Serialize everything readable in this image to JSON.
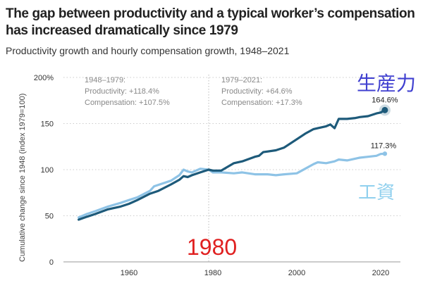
{
  "chart_data": {
    "type": "line",
    "title": "The gap between productivity and a typical worker’s compensation has increased dramatically since 1979",
    "subtitle": "Productivity growth and hourly compensation growth, 1948–2021",
    "xlabel": "",
    "ylabel": "Cumulative change since 1948 (index 1979=100)",
    "xlim": [
      1945,
      2024
    ],
    "ylim": [
      0,
      200
    ],
    "x_ticks": [
      1960,
      1980,
      2000,
      2020
    ],
    "x_tick_labels": [
      "1960",
      "1980",
      "2000",
      "2020"
    ],
    "y_ticks": [
      0,
      50,
      100,
      150,
      200
    ],
    "y_tick_labels": [
      "0",
      "50",
      "100",
      "150",
      "200%"
    ],
    "grid": true,
    "reference_line_x": 1979,
    "series": [
      {
        "name": "Productivity",
        "color": "#1d5a7a",
        "x": [
          1948,
          1950,
          1952,
          1955,
          1958,
          1960,
          1962,
          1965,
          1967,
          1970,
          1972,
          1973,
          1974,
          1975,
          1977,
          1979,
          1980,
          1982,
          1985,
          1987,
          1990,
          1991,
          1992,
          1995,
          1997,
          2000,
          2002,
          2004,
          2005,
          2007,
          2008,
          2009,
          2010,
          2012,
          2014,
          2015,
          2017,
          2019,
          2020,
          2021
        ],
        "values": [
          45.8,
          49,
          52,
          57,
          60,
          63,
          67,
          74,
          77,
          84,
          89,
          93,
          92,
          94,
          97,
          100,
          99,
          99,
          107,
          109,
          114,
          115,
          119,
          121,
          124,
          133,
          139,
          144,
          145,
          147,
          149,
          145,
          155,
          155,
          156,
          157,
          158,
          161,
          162,
          164.6
        ],
        "end_label": "164.6%"
      },
      {
        "name": "Compensation",
        "color": "#8ec3e6",
        "x": [
          1948,
          1950,
          1952,
          1955,
          1958,
          1960,
          1962,
          1965,
          1966,
          1968,
          1970,
          1972,
          1973,
          1974,
          1975,
          1977,
          1979,
          1980,
          1982,
          1985,
          1987,
          1990,
          1993,
          1995,
          1997,
          2000,
          2002,
          2004,
          2005,
          2007,
          2009,
          2010,
          2012,
          2014,
          2015,
          2017,
          2019,
          2020,
          2021
        ],
        "values": [
          48.2,
          52,
          55,
          60,
          64,
          67,
          70,
          77,
          82,
          85,
          88,
          94,
          100,
          98,
          97,
          101,
          100,
          97,
          97,
          96,
          97,
          95,
          95,
          94,
          95,
          96,
          101,
          106,
          108,
          107,
          109,
          111,
          110,
          112,
          113,
          114,
          115,
          117,
          117.3
        ],
        "end_label": "117.3%"
      }
    ],
    "annotations": {
      "period1": {
        "range": "1948–1979:",
        "productivity": "Productivity: +118.4%",
        "compensation": "Compensation: +107.5%"
      },
      "period2": {
        "range": "1979–2021:",
        "productivity": "Productivity: +64.6%",
        "compensation": "Compensation: +17.3%"
      },
      "overlay_productivity": "生産力",
      "overlay_wage": "工資",
      "overlay_year": "1980"
    }
  }
}
